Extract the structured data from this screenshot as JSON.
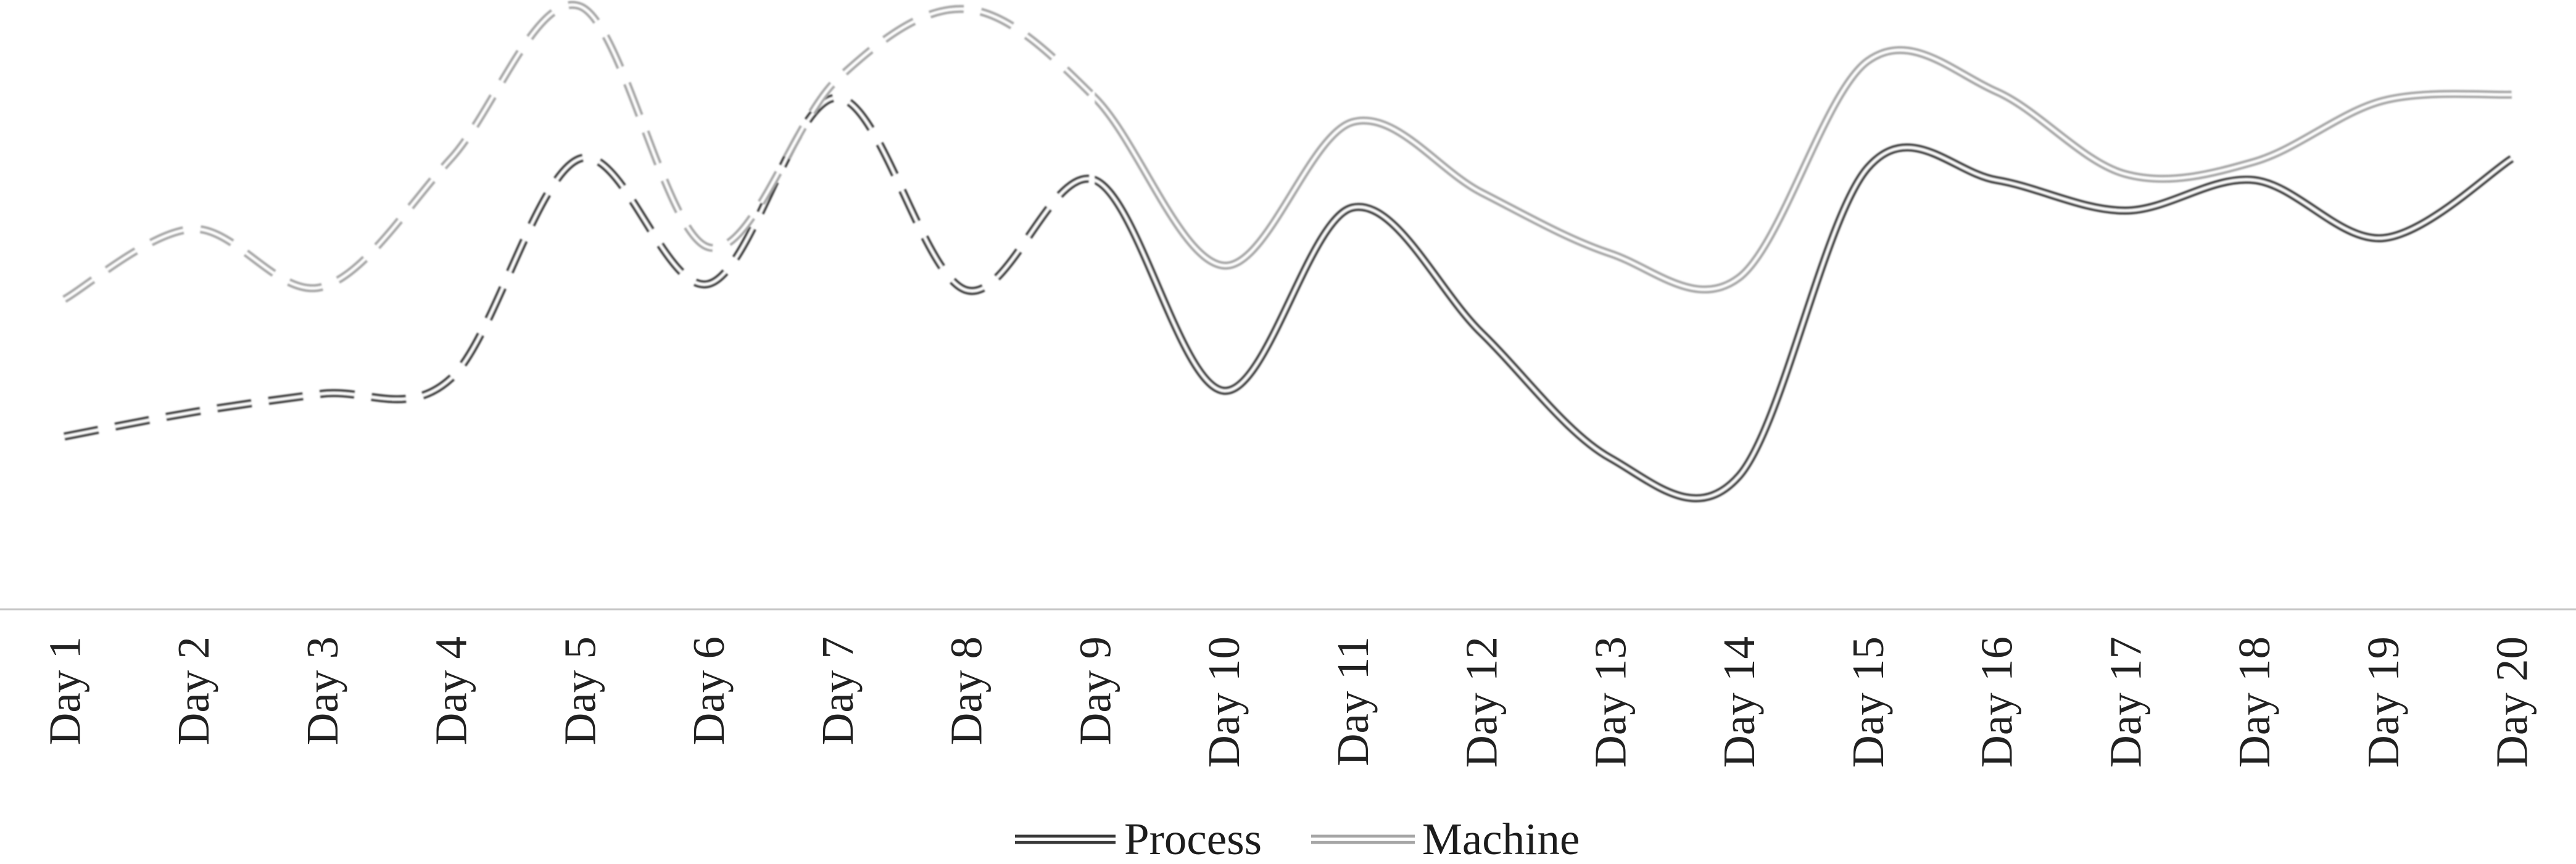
{
  "chart_data": {
    "type": "line",
    "title": "",
    "xlabel": "",
    "ylabel": "",
    "categories": [
      "Day 1",
      "Day 2",
      "Day 3",
      "Day 4",
      "Day 5",
      "Day 6",
      "Day 7",
      "Day 8",
      "Day 9",
      "Day 10",
      "Day 11",
      "Day 12",
      "Day 13",
      "Day 14",
      "Day 15",
      "Day 16",
      "Day 17",
      "Day 18",
      "Day 19",
      "Day 20"
    ],
    "series": [
      {
        "name": "Process",
        "color": "#383838",
        "values": [
          28.5,
          32.5,
          35.5,
          38,
          74,
          53.5,
          84,
          52.5,
          70.5,
          36,
          66,
          45.5,
          25,
          22,
          72.5,
          70.5,
          65.5,
          70.5,
          61,
          74
        ]
      },
      {
        "name": "Machine",
        "color": "#a5a5a5",
        "values": [
          51,
          62.5,
          53,
          74,
          99,
          59.5,
          87,
          98.5,
          84,
          56.5,
          80,
          68.5,
          58.5,
          54.5,
          90,
          85,
          71.5,
          73.5,
          83.5,
          84.5
        ]
      }
    ],
    "ylim": [
      0,
      100
    ],
    "grid": false,
    "y_axis_visible": false,
    "legend_position": "bottom-center",
    "style_notes": {
      "smooth": true,
      "line_style": "double-line (color outline with white core)",
      "dashed_from_category": "Day 1",
      "dashed_until_category": "Day 9",
      "solid_after_category": "Day 9",
      "x_label_rotation_deg": 90,
      "axis_line_color": "#c6c6c6",
      "label_color": "#212121",
      "background_color": "#ffffff"
    }
  },
  "x_axis": {
    "labels": [
      "Day 1",
      "Day 2",
      "Day 3",
      "Day 4",
      "Day 5",
      "Day 6",
      "Day 7",
      "Day 8",
      "Day 9",
      "Day 10",
      "Day 11",
      "Day 12",
      "Day 13",
      "Day 14",
      "Day 15",
      "Day 16",
      "Day 17",
      "Day 18",
      "Day 19",
      "Day 20"
    ]
  },
  "legend": {
    "items": [
      {
        "label": "Process",
        "color": "#383838"
      },
      {
        "label": "Machine",
        "color": "#a5a5a5"
      }
    ]
  }
}
